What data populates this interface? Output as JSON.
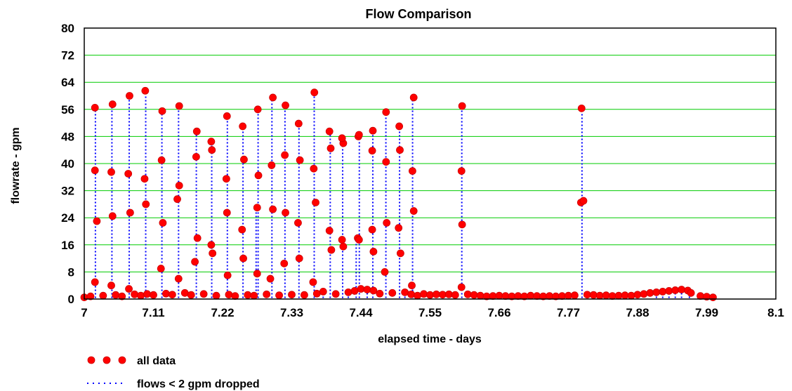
{
  "chart_data": {
    "type": "scatter",
    "title": "Flow Comparison",
    "xlabel": "elapsed time - days",
    "ylabel": "flowrate - gpm",
    "xlim": [
      7,
      8.1
    ],
    "ylim": [
      0,
      80
    ],
    "xticks": [
      "7",
      "7.11",
      "7.22",
      "7.33",
      "7.44",
      "7.55",
      "7.66",
      "7.77",
      "7.88",
      "7.99",
      "8.1"
    ],
    "xtick_values": [
      7,
      7.11,
      7.22,
      7.33,
      7.44,
      7.55,
      7.66,
      7.77,
      7.88,
      7.99,
      8.1
    ],
    "yticks": [
      0,
      8,
      16,
      24,
      32,
      40,
      48,
      56,
      64,
      72,
      80
    ],
    "grid": "horizontal",
    "grid_color": "#00cc00",
    "legend_position": "bottom-left",
    "series": [
      {
        "name": "all data",
        "style": "dots",
        "color": "#ff0000",
        "edge_color": "#cc0000",
        "points": [
          [
            7.017,
            5
          ],
          [
            7.017,
            38
          ],
          [
            7.02,
            23
          ],
          [
            7.017,
            56.5
          ],
          [
            7.043,
            4
          ],
          [
            7.045,
            24.5
          ],
          [
            7.043,
            37.5
          ],
          [
            7.045,
            57.5
          ],
          [
            7.071,
            3
          ],
          [
            7.073,
            25.5
          ],
          [
            7.07,
            37
          ],
          [
            7.072,
            60
          ],
          [
            7.098,
            28
          ],
          [
            7.096,
            35.5
          ],
          [
            7.097,
            61.5
          ],
          [
            7.122,
            9
          ],
          [
            7.125,
            22.5
          ],
          [
            7.123,
            41
          ],
          [
            7.124,
            55.5
          ],
          [
            7.15,
            6
          ],
          [
            7.148,
            29.5
          ],
          [
            7.151,
            33.5
          ],
          [
            7.151,
            57
          ],
          [
            7.176,
            11
          ],
          [
            7.18,
            18
          ],
          [
            7.178,
            42
          ],
          [
            7.179,
            49.5
          ],
          [
            7.202,
            16
          ],
          [
            7.204,
            13.5
          ],
          [
            7.203,
            44
          ],
          [
            7.202,
            46.5
          ],
          [
            7.228,
            7
          ],
          [
            7.227,
            25.5
          ],
          [
            7.226,
            35.5
          ],
          [
            7.227,
            54
          ],
          [
            7.251,
            20.5
          ],
          [
            7.253,
            12
          ],
          [
            7.254,
            41.2
          ],
          [
            7.252,
            51
          ],
          [
            7.275,
            7.5
          ],
          [
            7.275,
            27
          ],
          [
            7.277,
            36.5
          ],
          [
            7.276,
            56
          ],
          [
            7.296,
            6
          ],
          [
            7.3,
            26.5
          ],
          [
            7.298,
            39.5
          ],
          [
            7.3,
            59.5
          ],
          [
            7.318,
            10.5
          ],
          [
            7.32,
            25.5
          ],
          [
            7.319,
            42.5
          ],
          [
            7.32,
            57.2
          ],
          [
            7.342,
            12
          ],
          [
            7.34,
            22.5
          ],
          [
            7.343,
            41
          ],
          [
            7.341,
            51.8
          ],
          [
            7.364,
            5
          ],
          [
            7.368,
            28.5
          ],
          [
            7.365,
            38.5
          ],
          [
            7.366,
            61
          ],
          [
            7.39,
            20.2
          ],
          [
            7.393,
            14.5
          ],
          [
            7.392,
            44.5
          ],
          [
            7.39,
            49.5
          ],
          [
            7.41,
            17.5
          ],
          [
            7.412,
            15.5
          ],
          [
            7.412,
            46
          ],
          [
            7.41,
            47.5
          ],
          [
            7.435,
            18
          ],
          [
            7.437,
            17.5
          ],
          [
            7.436,
            48
          ],
          [
            7.437,
            48.5
          ],
          [
            7.458,
            20.5
          ],
          [
            7.46,
            14
          ],
          [
            7.458,
            43.8
          ],
          [
            7.459,
            49.7
          ],
          [
            7.478,
            8
          ],
          [
            7.481,
            22.5
          ],
          [
            7.48,
            40.5
          ],
          [
            7.48,
            55.2
          ],
          [
            7.5,
            21
          ],
          [
            7.503,
            13.5
          ],
          [
            7.502,
            44
          ],
          [
            7.501,
            51
          ],
          [
            7.521,
            4
          ],
          [
            7.524,
            26
          ],
          [
            7.522,
            37.8
          ],
          [
            7.524,
            59.5
          ],
          [
            7.6,
            3.5
          ],
          [
            7.601,
            22
          ],
          [
            7.6,
            37.8
          ],
          [
            7.601,
            57
          ],
          [
            7.79,
            28.5
          ],
          [
            7.794,
            29
          ],
          [
            7.791,
            56.3
          ],
          [
            7.0,
            0.5
          ],
          [
            7.01,
            0.8
          ],
          [
            7.03,
            1.0
          ],
          [
            7.05,
            1.2
          ],
          [
            7.06,
            0.8
          ],
          [
            7.08,
            1.4
          ],
          [
            7.09,
            1.0
          ],
          [
            7.1,
            1.5
          ],
          [
            7.11,
            1.2
          ],
          [
            7.13,
            1.6
          ],
          [
            7.14,
            1.3
          ],
          [
            7.16,
            1.8
          ],
          [
            7.17,
            1.2
          ],
          [
            7.19,
            1.5
          ],
          [
            7.21,
            1.0
          ],
          [
            7.23,
            1.3
          ],
          [
            7.24,
            0.9
          ],
          [
            7.26,
            1.2
          ],
          [
            7.27,
            1.0
          ],
          [
            7.29,
            1.4
          ],
          [
            7.31,
            1.1
          ],
          [
            7.33,
            1.3
          ],
          [
            7.35,
            1.2
          ],
          [
            7.37,
            1.6
          ],
          [
            7.38,
            2.2
          ],
          [
            7.4,
            1.5
          ],
          [
            7.42,
            2.0
          ],
          [
            7.43,
            2.4
          ],
          [
            7.44,
            3.0
          ],
          [
            7.45,
            2.8
          ],
          [
            7.46,
            2.5
          ],
          [
            7.47,
            1.6
          ],
          [
            7.49,
            1.8
          ],
          [
            7.51,
            2.0
          ],
          [
            7.52,
            1.4
          ],
          [
            7.53,
            1.0
          ],
          [
            7.54,
            1.5
          ],
          [
            7.55,
            1.2
          ],
          [
            7.56,
            1.4
          ],
          [
            7.57,
            1.3
          ],
          [
            7.58,
            1.4
          ],
          [
            7.59,
            1.2
          ],
          [
            7.61,
            1.4
          ],
          [
            7.62,
            1.2
          ],
          [
            7.63,
            1.0
          ],
          [
            7.64,
            0.8
          ],
          [
            7.65,
            0.9
          ],
          [
            7.66,
            1.0
          ],
          [
            7.67,
            0.9
          ],
          [
            7.68,
            0.8
          ],
          [
            7.69,
            0.9
          ],
          [
            7.7,
            0.8
          ],
          [
            7.71,
            1.0
          ],
          [
            7.72,
            0.9
          ],
          [
            7.73,
            0.8
          ],
          [
            7.74,
            0.9
          ],
          [
            7.75,
            0.8
          ],
          [
            7.76,
            0.9
          ],
          [
            7.77,
            1.0
          ],
          [
            7.78,
            1.1
          ],
          [
            7.8,
            1.3
          ],
          [
            7.81,
            1.2
          ],
          [
            7.82,
            1.0
          ],
          [
            7.83,
            1.1
          ],
          [
            7.84,
            0.9
          ],
          [
            7.85,
            1.0
          ],
          [
            7.86,
            1.1
          ],
          [
            7.87,
            1.0
          ],
          [
            7.88,
            1.3
          ],
          [
            7.89,
            1.5
          ],
          [
            7.9,
            1.8
          ],
          [
            7.91,
            2.0
          ],
          [
            7.92,
            2.2
          ],
          [
            7.93,
            2.4
          ],
          [
            7.94,
            2.6
          ],
          [
            7.95,
            2.8
          ],
          [
            7.96,
            2.5
          ],
          [
            7.965,
            1.8
          ],
          [
            7.98,
            0.9
          ],
          [
            7.99,
            0.7
          ],
          [
            8.0,
            0.5
          ]
        ]
      },
      {
        "name": "flows < 2 gpm dropped",
        "style": "dotted-line",
        "color": "#0000ff",
        "note": "same samples as above with values below 2 gpm removed"
      }
    ]
  }
}
